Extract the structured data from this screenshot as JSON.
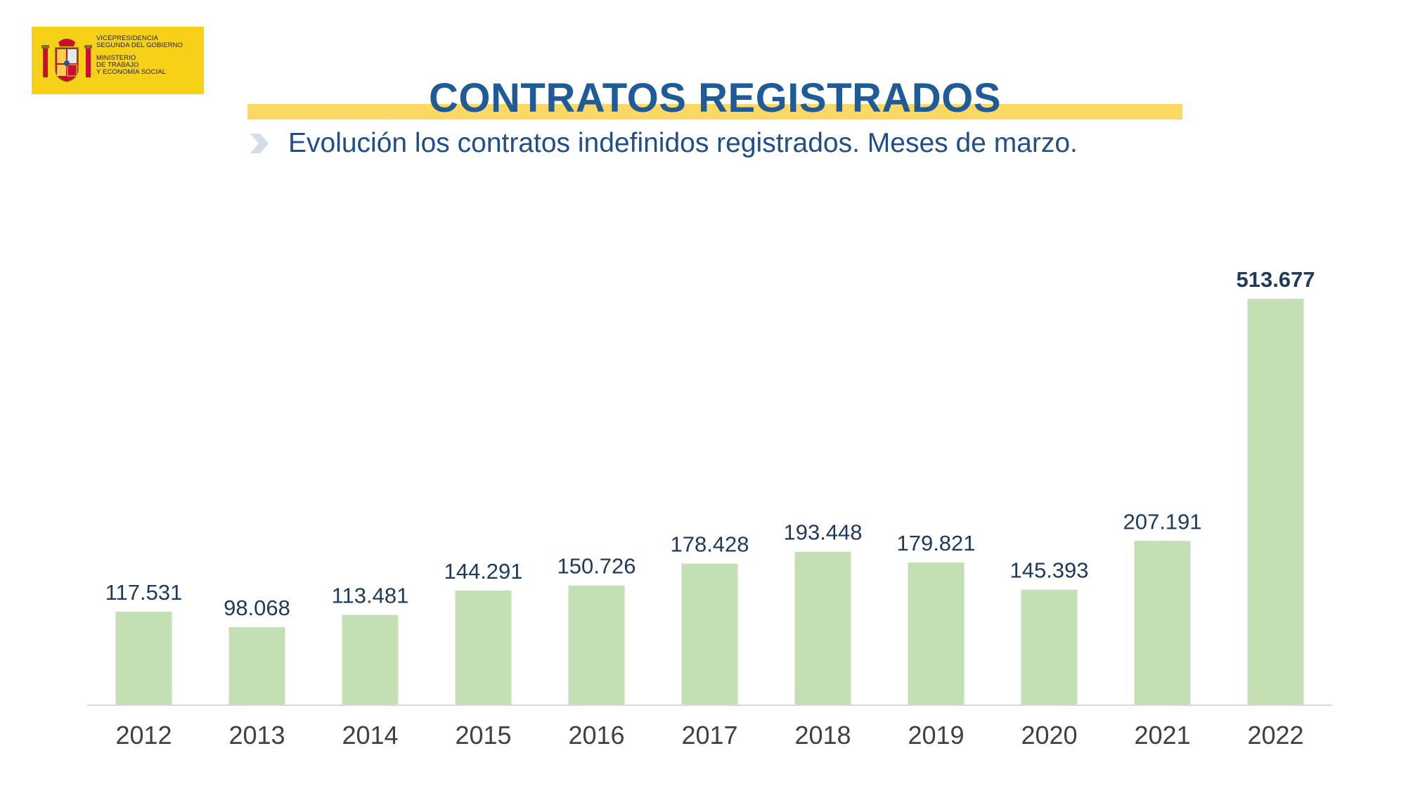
{
  "header": {
    "logo_lines": [
      "VICEPRESIDENCIA",
      "SEGUNDA DEL GOBIERNO",
      "MINISTERIO",
      "DE TRABAJO",
      "Y ECONOMÍA SOCIAL"
    ],
    "title": "CONTRATOS REGISTRADOS",
    "subtitle": "Evolución los contratos indefinidos registrados. Meses de marzo."
  },
  "colors": {
    "title": "#1f5a99",
    "accent_bar": "#fbd764",
    "logo_bg": "#f7d117",
    "bar": "#c5dfb4",
    "label": "#1f3a5f",
    "axis_text": "#404040"
  },
  "chart_data": {
    "type": "bar",
    "title": "Evolución los contratos indefinidos registrados. Meses de marzo.",
    "xlabel": "",
    "ylabel": "",
    "categories": [
      "2012",
      "2013",
      "2014",
      "2015",
      "2016",
      "2017",
      "2018",
      "2019",
      "2020",
      "2021",
      "2022"
    ],
    "values": [
      117531,
      98068,
      113481,
      144291,
      150726,
      178428,
      193448,
      179821,
      145393,
      207191,
      513677
    ],
    "value_labels": [
      "117.531",
      "98.068",
      "113.481",
      "144.291",
      "150.726",
      "178.428",
      "193.448",
      "179.821",
      "145.393",
      "207.191",
      "513.677"
    ],
    "highlight_last": true,
    "ylim": [
      0,
      513677
    ],
    "grid": false
  }
}
